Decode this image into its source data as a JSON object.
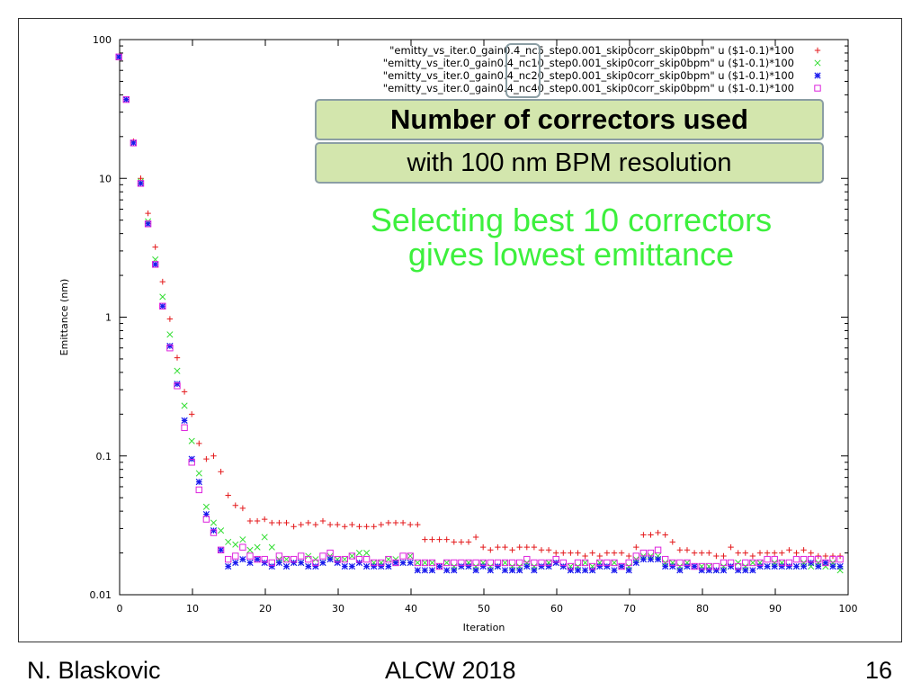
{
  "chart_data": {
    "type": "scatter",
    "title": "",
    "xlabel": "Iteration",
    "ylabel": "Emittance (nm)",
    "xlim": [
      0,
      100
    ],
    "ylim": [
      0.01,
      100
    ],
    "yscale": "log",
    "x_offset": -0.1,
    "xticks": [
      "0",
      "10",
      "20",
      "30",
      "40",
      "50",
      "60",
      "70",
      "80",
      "90",
      "100"
    ],
    "yticks": [
      "100",
      "10",
      "1",
      "0.1",
      "0.01"
    ],
    "legend_position": "top-right",
    "series": [
      {
        "name": "\"emitty_vs_iter.0_gain0.4_nc5_step0.001_skip0corr_skip0bpm\" u ($1-0.1)*100",
        "marker": "+",
        "color": "#e41a1c",
        "values": [
          75,
          37,
          18.5,
          10,
          5.6,
          3.2,
          1.8,
          0.97,
          0.51,
          0.29,
          0.2,
          0.123,
          0.095,
          0.1,
          0.077,
          0.052,
          0.044,
          0.042,
          0.034,
          0.034,
          0.035,
          0.033,
          0.033,
          0.033,
          0.031,
          0.032,
          0.033,
          0.032,
          0.034,
          0.032,
          0.032,
          0.031,
          0.032,
          0.031,
          0.031,
          0.031,
          0.032,
          0.033,
          0.033,
          0.033,
          0.032,
          0.032,
          0.025,
          0.025,
          0.025,
          0.025,
          0.024,
          0.024,
          0.024,
          0.026,
          0.022,
          0.021,
          0.022,
          0.022,
          0.021,
          0.022,
          0.022,
          0.022,
          0.021,
          0.021,
          0.02,
          0.02,
          0.02,
          0.02,
          0.019,
          0.02,
          0.019,
          0.02,
          0.02,
          0.02,
          0.019,
          0.022,
          0.027,
          0.027,
          0.028,
          0.027,
          0.024,
          0.021,
          0.021,
          0.02,
          0.02,
          0.02,
          0.019,
          0.019,
          0.022,
          0.02,
          0.02,
          0.019,
          0.02,
          0.02,
          0.02,
          0.02,
          0.021,
          0.02,
          0.021,
          0.02,
          0.019,
          0.019,
          0.019,
          0.019
        ]
      },
      {
        "name": "\"emitty_vs_iter.0_gain0.4_nc10_step0.001_skip0corr_skip0bpm\" u ($1-0.1)*100",
        "marker": "x",
        "color": "#33dd33",
        "values": [
          75,
          37,
          18,
          9.5,
          4.9,
          2.6,
          1.4,
          0.75,
          0.41,
          0.23,
          0.128,
          0.075,
          0.043,
          0.033,
          0.029,
          0.024,
          0.023,
          0.025,
          0.021,
          0.022,
          0.026,
          0.022,
          0.018,
          0.018,
          0.017,
          0.017,
          0.019,
          0.018,
          0.017,
          0.019,
          0.018,
          0.018,
          0.019,
          0.02,
          0.02,
          0.017,
          0.017,
          0.018,
          0.018,
          0.017,
          0.019,
          0.017,
          0.017,
          0.017,
          0.016,
          0.017,
          0.016,
          0.016,
          0.017,
          0.016,
          0.017,
          0.016,
          0.016,
          0.017,
          0.016,
          0.016,
          0.017,
          0.016,
          0.016,
          0.017,
          0.017,
          0.016,
          0.016,
          0.016,
          0.017,
          0.016,
          0.017,
          0.016,
          0.017,
          0.016,
          0.016,
          0.018,
          0.019,
          0.019,
          0.019,
          0.017,
          0.017,
          0.016,
          0.017,
          0.016,
          0.016,
          0.016,
          0.015,
          0.016,
          0.016,
          0.017,
          0.016,
          0.017,
          0.017,
          0.016,
          0.017,
          0.017,
          0.016,
          0.016,
          0.017,
          0.016,
          0.017,
          0.016,
          0.017,
          0.015
        ]
      },
      {
        "name": "\"emitty_vs_iter.0_gain0.4_nc20_step0.001_skip0corr_skip0bpm\" u ($1-0.1)*100",
        "marker": "*",
        "color": "#1a1aee",
        "values": [
          75,
          37,
          18,
          9.2,
          4.7,
          2.4,
          1.2,
          0.62,
          0.33,
          0.18,
          0.095,
          0.065,
          0.038,
          0.029,
          0.021,
          0.016,
          0.017,
          0.018,
          0.017,
          0.018,
          0.017,
          0.016,
          0.017,
          0.016,
          0.017,
          0.017,
          0.016,
          0.016,
          0.017,
          0.018,
          0.017,
          0.016,
          0.016,
          0.017,
          0.016,
          0.016,
          0.016,
          0.016,
          0.017,
          0.017,
          0.017,
          0.015,
          0.015,
          0.015,
          0.016,
          0.015,
          0.015,
          0.016,
          0.016,
          0.015,
          0.016,
          0.015,
          0.016,
          0.015,
          0.015,
          0.015,
          0.016,
          0.015,
          0.016,
          0.016,
          0.017,
          0.016,
          0.015,
          0.015,
          0.015,
          0.015,
          0.016,
          0.016,
          0.015,
          0.016,
          0.015,
          0.017,
          0.018,
          0.018,
          0.018,
          0.016,
          0.016,
          0.015,
          0.016,
          0.016,
          0.015,
          0.015,
          0.015,
          0.015,
          0.016,
          0.015,
          0.015,
          0.015,
          0.016,
          0.016,
          0.016,
          0.016,
          0.016,
          0.016,
          0.016,
          0.017,
          0.016,
          0.017,
          0.016,
          0.016
        ]
      },
      {
        "name": "\"emitty_vs_iter.0_gain0.4_nc40_step0.001_skip0corr_skip0bpm\" u ($1-0.1)*100",
        "marker": "square",
        "color": "#dd22dd",
        "values": [
          75,
          37,
          18,
          9.2,
          4.7,
          2.4,
          1.2,
          0.6,
          0.32,
          0.16,
          0.09,
          0.057,
          0.035,
          0.028,
          0.021,
          0.018,
          0.019,
          0.022,
          0.019,
          0.018,
          0.018,
          0.017,
          0.019,
          0.018,
          0.018,
          0.019,
          0.018,
          0.017,
          0.019,
          0.02,
          0.018,
          0.018,
          0.019,
          0.018,
          0.018,
          0.017,
          0.017,
          0.018,
          0.017,
          0.019,
          0.019,
          0.017,
          0.017,
          0.017,
          0.016,
          0.017,
          0.017,
          0.017,
          0.017,
          0.017,
          0.017,
          0.017,
          0.017,
          0.017,
          0.017,
          0.017,
          0.018,
          0.017,
          0.017,
          0.017,
          0.018,
          0.017,
          0.016,
          0.017,
          0.017,
          0.016,
          0.017,
          0.017,
          0.017,
          0.016,
          0.017,
          0.019,
          0.02,
          0.02,
          0.021,
          0.018,
          0.017,
          0.017,
          0.017,
          0.016,
          0.016,
          0.016,
          0.016,
          0.017,
          0.017,
          0.016,
          0.017,
          0.017,
          0.017,
          0.018,
          0.018,
          0.017,
          0.017,
          0.018,
          0.018,
          0.018,
          0.018,
          0.017,
          0.018,
          0.018
        ]
      }
    ]
  },
  "overlay": {
    "box_title": "Number of correctors used",
    "box_subtitle": "with 100 nm BPM resolution",
    "note_line1": "Selecting best 10 correctors",
    "note_line2": "gives lowest emittance"
  },
  "footer": {
    "author": "N. Blaskovic",
    "event": "ALCW 2018",
    "page": "16"
  }
}
